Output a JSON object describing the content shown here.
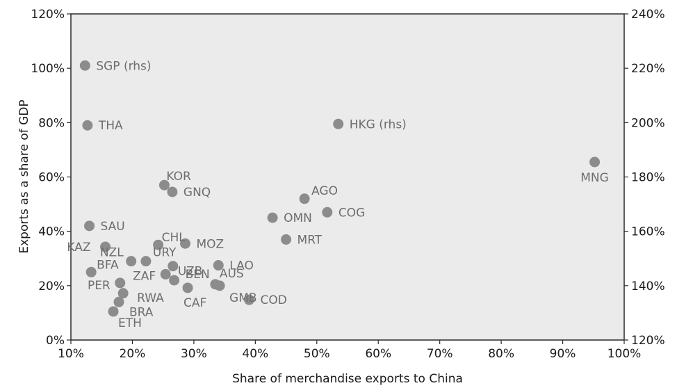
{
  "chart_data": {
    "type": "scatter",
    "xlabel": "Share of merchandise exports to China",
    "ylabel": "Exports as a share of GDP",
    "xlim": [
      10,
      100
    ],
    "ylim": [
      0,
      120
    ],
    "y2lim": [
      120,
      240
    ],
    "grid": false,
    "plot_background": "#ebebeb",
    "point_color": "#8c8c8c",
    "x_ticks": [
      "10%",
      "20%",
      "30%",
      "40%",
      "50%",
      "60%",
      "70%",
      "80%",
      "90%",
      "100%"
    ],
    "y_ticks": [
      "0%",
      "20%",
      "40%",
      "60%",
      "80%",
      "100%",
      "120%"
    ],
    "y2_ticks": [
      "120%",
      "140%",
      "160%",
      "180%",
      "200%",
      "220%",
      "240%"
    ],
    "points": [
      {
        "label": "SGP (rhs)",
        "x": 12.3,
        "y": 101,
        "axis": "right"
      },
      {
        "label": "THA",
        "x": 12.7,
        "y": 79,
        "axis": "left"
      },
      {
        "label": "HKG (rhs)",
        "x": 53.5,
        "y": 79.5,
        "axis": "right"
      },
      {
        "label": "MNG",
        "x": 95.2,
        "y": 65.5,
        "axis": "left"
      },
      {
        "label": "KOR",
        "x": 25.2,
        "y": 57,
        "axis": "left"
      },
      {
        "label": "GNQ",
        "x": 26.5,
        "y": 54.5,
        "axis": "left"
      },
      {
        "label": "AGO",
        "x": 48,
        "y": 52,
        "axis": "left"
      },
      {
        "label": "COG",
        "x": 51.7,
        "y": 47,
        "axis": "left"
      },
      {
        "label": "OMN",
        "x": 42.8,
        "y": 45,
        "axis": "left"
      },
      {
        "label": "SAU",
        "x": 13,
        "y": 42,
        "axis": "left"
      },
      {
        "label": "MRT",
        "x": 45,
        "y": 37,
        "axis": "left"
      },
      {
        "label": "CHL",
        "x": 24.2,
        "y": 35,
        "axis": "left"
      },
      {
        "label": "MOZ",
        "x": 28.6,
        "y": 35.5,
        "axis": "left"
      },
      {
        "label": "KAZ",
        "x": 15.6,
        "y": 34.3,
        "axis": "left"
      },
      {
        "label": "NZL",
        "x": 19.8,
        "y": 29,
        "axis": "left"
      },
      {
        "label": "URY",
        "x": 22.2,
        "y": 29,
        "axis": "left"
      },
      {
        "label": "UZB",
        "x": 26.6,
        "y": 27.2,
        "axis": "left"
      },
      {
        "label": "LAO",
        "x": 34,
        "y": 27.5,
        "axis": "left"
      },
      {
        "label": "BFA",
        "x": 13.3,
        "y": 25,
        "axis": "left"
      },
      {
        "label": "ZAF",
        "x": 25.4,
        "y": 24.2,
        "axis": "left"
      },
      {
        "label": "BEN",
        "x": 26.8,
        "y": 22,
        "axis": "left"
      },
      {
        "label": "AUS",
        "x": 33.5,
        "y": 20.5,
        "axis": "left"
      },
      {
        "label": "PER",
        "x": 18,
        "y": 21,
        "axis": "left"
      },
      {
        "label": "GMB",
        "x": 34.2,
        "y": 20,
        "axis": "left"
      },
      {
        "label": "CAF",
        "x": 29,
        "y": 19.2,
        "axis": "left"
      },
      {
        "label": "RWA",
        "x": 18.5,
        "y": 17.2,
        "axis": "left"
      },
      {
        "label": "COD",
        "x": 39,
        "y": 14.8,
        "axis": "left"
      },
      {
        "label": "BRA",
        "x": 17.8,
        "y": 14,
        "axis": "left"
      },
      {
        "label": "ETH",
        "x": 16.9,
        "y": 10.5,
        "axis": "left"
      }
    ]
  }
}
